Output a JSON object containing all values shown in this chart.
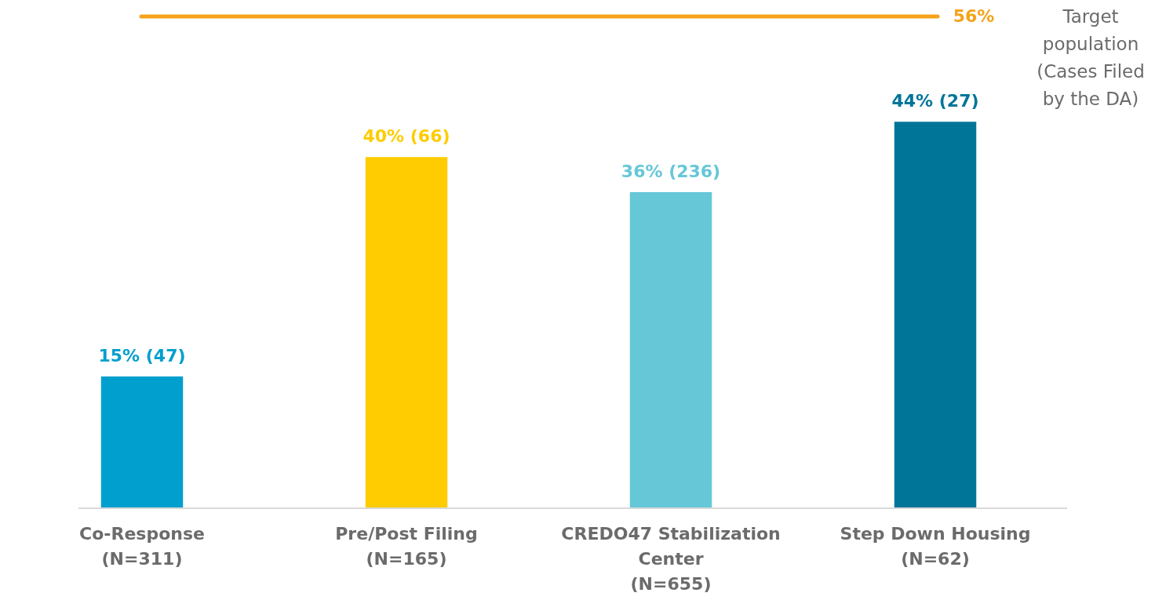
{
  "chart_data": {
    "type": "bar",
    "categories": [
      "Co-Response\n(N=311)",
      "Pre/Post Filing\n(N=165)",
      "CREDO47 Stabilization\nCenter\n(N=655)",
      "Step Down Housing\n(N=62)"
    ],
    "values": [
      15,
      40,
      36,
      44
    ],
    "colors": [
      "#009fce",
      "#fecc00",
      "#66c7d7",
      "#007598"
    ],
    "value_labels": [
      "15% (47)",
      "40% (66)",
      "36% (236)",
      "44% (27)"
    ],
    "ref_lines": [
      {
        "axis": "y",
        "value": 56,
        "label": "56%",
        "color": "#f5a31a"
      }
    ],
    "annotations": [
      "Target population (Cases Filed by the DA)"
    ],
    "grid": false
  }
}
